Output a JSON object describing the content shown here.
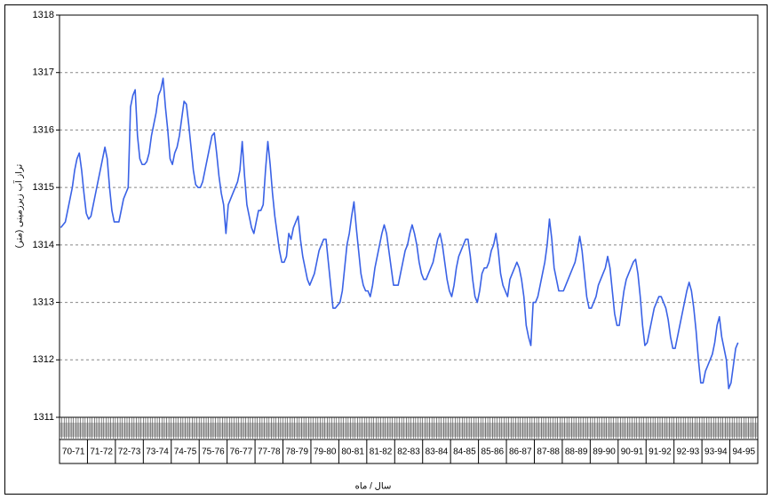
{
  "chart_data": {
    "type": "line",
    "y_axis_title": "تراز آب زیرزمینی (متر)",
    "x_axis_title": "سال / ماه",
    "categories": [
      "70-71",
      "71-72",
      "72-73",
      "73-74",
      "74-75",
      "75-76",
      "76-77",
      "77-78",
      "78-79",
      "79-80",
      "80-81",
      "81-82",
      "82-83",
      "83-84",
      "84-85",
      "85-86",
      "86-87",
      "87-88",
      "88-89",
      "89-90",
      "90-91",
      "91-92",
      "92-93",
      "93-94",
      "94-95"
    ],
    "series": [
      {
        "color": "#3a62e6",
        "values": [
          [
            1314.3,
            1314.35,
            1314.4,
            1314.6,
            1314.8,
            1315.0,
            1315.3,
            1315.5,
            1315.6,
            1315.3,
            1314.9,
            1314.55
          ],
          [
            1314.45,
            1314.5,
            1314.7,
            1314.9,
            1315.1,
            1315.3,
            1315.5,
            1315.7,
            1315.5,
            1315.0,
            1314.6,
            1314.4
          ],
          [
            1314.4,
            1314.4,
            1314.6,
            1314.8,
            1314.9,
            1315.0,
            1316.4,
            1316.6,
            1316.7,
            1315.9,
            1315.5,
            1315.4
          ],
          [
            1315.4,
            1315.45,
            1315.6,
            1315.9,
            1316.1,
            1316.3,
            1316.6,
            1316.7,
            1316.9,
            1316.4,
            1316.0,
            1315.5
          ],
          [
            1315.4,
            1315.6,
            1315.7,
            1315.9,
            1316.2,
            1316.5,
            1316.45,
            1316.1,
            1315.7,
            1315.3,
            1315.05,
            1315.0
          ],
          [
            1315.0,
            1315.1,
            1315.3,
            1315.5,
            1315.7,
            1315.9,
            1315.95,
            1315.6,
            1315.2,
            1314.9,
            1314.7,
            1314.2
          ],
          [
            1314.7,
            1314.8,
            1314.9,
            1315.0,
            1315.1,
            1315.3,
            1315.8,
            1315.2,
            1314.7,
            1314.5,
            1314.3,
            1314.2
          ],
          [
            1314.4,
            1314.6,
            1314.6,
            1314.7,
            1315.3,
            1315.8,
            1315.4,
            1314.9,
            1314.5,
            1314.2,
            1313.9,
            1313.7
          ],
          [
            1313.7,
            1313.8,
            1314.2,
            1314.1,
            1314.3,
            1314.4,
            1314.5,
            1314.1,
            1313.8,
            1313.6,
            1313.4,
            1313.3
          ],
          [
            1313.4,
            1313.5,
            1313.7,
            1313.9,
            1314.0,
            1314.1,
            1314.1,
            1313.7,
            1313.3,
            1312.9,
            1312.9,
            1312.95
          ],
          [
            1313.0,
            1313.2,
            1313.6,
            1314.0,
            1314.2,
            1314.5,
            1314.75,
            1314.3,
            1313.9,
            1313.5,
            1313.3,
            1313.2
          ],
          [
            1313.2,
            1313.1,
            1313.3,
            1313.6,
            1313.8,
            1314.0,
            1314.2,
            1314.35,
            1314.2,
            1313.9,
            1313.6,
            1313.3
          ],
          [
            1313.3,
            1313.3,
            1313.5,
            1313.7,
            1313.9,
            1314.0,
            1314.2,
            1314.35,
            1314.2,
            1314.0,
            1313.7,
            1313.5
          ],
          [
            1313.4,
            1313.4,
            1313.5,
            1313.6,
            1313.7,
            1313.9,
            1314.1,
            1314.2,
            1314.0,
            1313.7,
            1313.4,
            1313.2
          ],
          [
            1313.1,
            1313.3,
            1313.6,
            1313.8,
            1313.9,
            1314.0,
            1314.1,
            1314.1,
            1313.8,
            1313.4,
            1313.1,
            1313.0
          ],
          [
            1313.2,
            1313.5,
            1313.6,
            1313.6,
            1313.7,
            1313.9,
            1314.0,
            1314.2,
            1313.9,
            1313.5,
            1313.3,
            1313.2
          ],
          [
            1313.1,
            1313.4,
            1313.5,
            1313.6,
            1313.7,
            1313.6,
            1313.4,
            1313.1,
            1312.6,
            1312.4,
            1312.25,
            1313.0
          ],
          [
            1313.0,
            1313.1,
            1313.3,
            1313.5,
            1313.7,
            1314.0,
            1314.45,
            1314.1,
            1313.6,
            1313.4,
            1313.2,
            1313.2
          ],
          [
            1313.2,
            1313.3,
            1313.4,
            1313.5,
            1313.6,
            1313.7,
            1313.9,
            1314.15,
            1313.9,
            1313.5,
            1313.1,
            1312.9
          ],
          [
            1312.9,
            1313.0,
            1313.1,
            1313.3,
            1313.4,
            1313.5,
            1313.6,
            1313.8,
            1313.6,
            1313.2,
            1312.8,
            1312.6
          ],
          [
            1312.6,
            1312.9,
            1313.2,
            1313.4,
            1313.5,
            1313.6,
            1313.7,
            1313.75,
            1313.5,
            1313.1,
            1312.6,
            1312.25
          ],
          [
            1312.3,
            1312.5,
            1312.7,
            1312.9,
            1313.0,
            1313.1,
            1313.1,
            1313.0,
            1312.9,
            1312.7,
            1312.4,
            1312.2
          ],
          [
            1312.2,
            1312.4,
            1312.6,
            1312.8,
            1313.0,
            1313.2,
            1313.35,
            1313.2,
            1312.9,
            1312.5,
            1312.0,
            1311.6
          ],
          [
            1311.6,
            1311.8,
            1311.9,
            1312.0,
            1312.1,
            1312.3,
            1312.6,
            1312.75,
            1312.4,
            1312.2,
            1312.0,
            1311.5
          ],
          [
            1311.6,
            1311.9,
            1312.2,
            1312.3,
            null,
            null,
            null,
            null,
            null,
            null,
            null,
            null
          ]
        ]
      }
    ],
    "ylim": [
      1311,
      1318
    ],
    "yticks": [
      1311,
      1312,
      1313,
      1314,
      1315,
      1316,
      1317,
      1318
    ],
    "grid": true
  }
}
